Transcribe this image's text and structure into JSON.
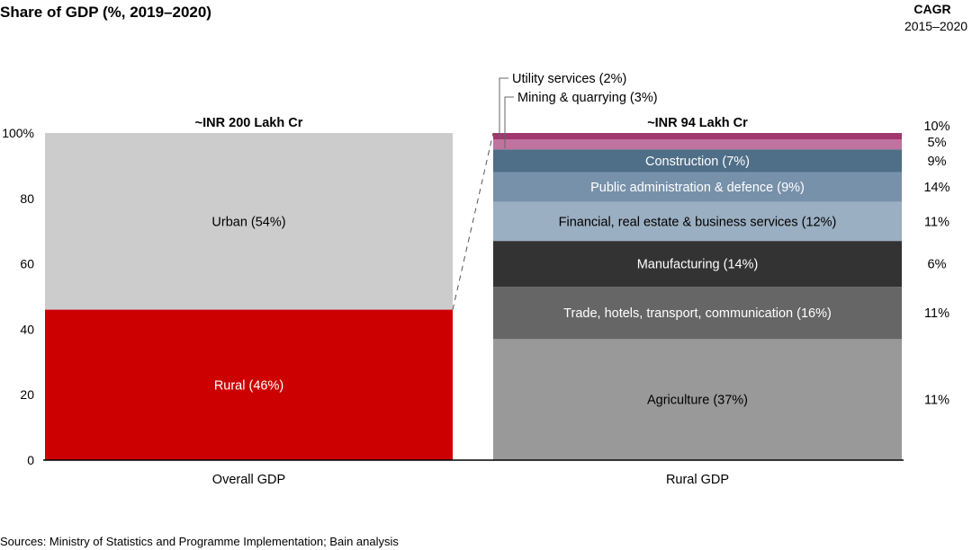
{
  "chart_data": {
    "type": "bar",
    "stacked": true,
    "title": "Share of GDP (%, 2019–2020)",
    "ylim": [
      0,
      100
    ],
    "yticks": [
      "0",
      "20",
      "40",
      "60",
      "80",
      "100%"
    ],
    "ytick_values": [
      0,
      20,
      40,
      60,
      80,
      100
    ],
    "categories": [
      "Overall GDP",
      "Rural GDP"
    ],
    "totals": [
      "~INR 200 Lakh Cr",
      "~INR 94 Lakh Cr"
    ],
    "cagr_header": [
      "CAGR",
      "2015–2020"
    ],
    "bars": [
      {
        "category": "Overall GDP",
        "segments": [
          {
            "label": "Rural (46%)",
            "value": 46,
            "color": "#CC0000",
            "text_color": "#ffffff"
          },
          {
            "label": "Urban (54%)",
            "value": 54,
            "color": "#CCCCCC",
            "text_color": "#000000"
          }
        ]
      },
      {
        "category": "Rural GDP",
        "segments": [
          {
            "label": "Agriculture (37%)",
            "value": 37,
            "color": "#999999",
            "text_color": "#000000",
            "cagr": "11%"
          },
          {
            "label": "Trade, hotels, transport, communication (16%)",
            "value": 16,
            "color": "#666666",
            "text_color": "#ffffff",
            "cagr": "11%"
          },
          {
            "label": "Manufacturing (14%)",
            "value": 14,
            "color": "#333333",
            "text_color": "#ffffff",
            "cagr": "6%"
          },
          {
            "label": "Financial, real estate & business services  (12%)",
            "value": 12,
            "color": "#9BAFC2",
            "text_color": "#000000",
            "cagr": "11%"
          },
          {
            "label": "Public administration & defence  (9%)",
            "value": 9,
            "color": "#7891AA",
            "text_color": "#ffffff",
            "cagr": "14%"
          },
          {
            "label": "Construction (7%)",
            "value": 7,
            "color": "#4F6E88",
            "text_color": "#ffffff",
            "cagr": "9%"
          },
          {
            "label": "Mining & quarrying (3%)",
            "value": 3,
            "color": "#C0739F",
            "text_color": "#000000",
            "cagr": "5%",
            "callout": true
          },
          {
            "label": "Utility services (2%)",
            "value": 2,
            "color": "#A1376F",
            "text_color": "#000000",
            "cagr": "10%",
            "callout": true
          }
        ]
      }
    ]
  },
  "footer": {
    "sources": "Sources: Ministry of Statistics and Programme Implementation; Bain analysis"
  }
}
